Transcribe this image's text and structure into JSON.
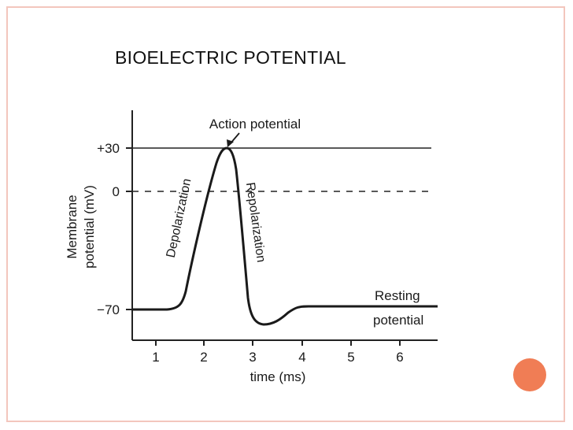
{
  "slide": {
    "title": "BIOELECTRIC POTENTIAL",
    "border_color": "#f3c6bd",
    "accent_color": "#f07d55"
  },
  "diagram": {
    "peak_label": "Action potential",
    "depolarization_label": "Depolarization",
    "repolarization_label": "Repolarization",
    "resting_label_line1": "Resting",
    "resting_label_line2": "potential",
    "ylabel_line1": "Membrane",
    "ylabel_line2": "potential (mV)",
    "xlabel": "time (ms)",
    "y_ticks": [
      "+30",
      "0",
      "−70"
    ],
    "x_ticks": [
      "1",
      "2",
      "3",
      "4",
      "5",
      "6"
    ]
  }
}
